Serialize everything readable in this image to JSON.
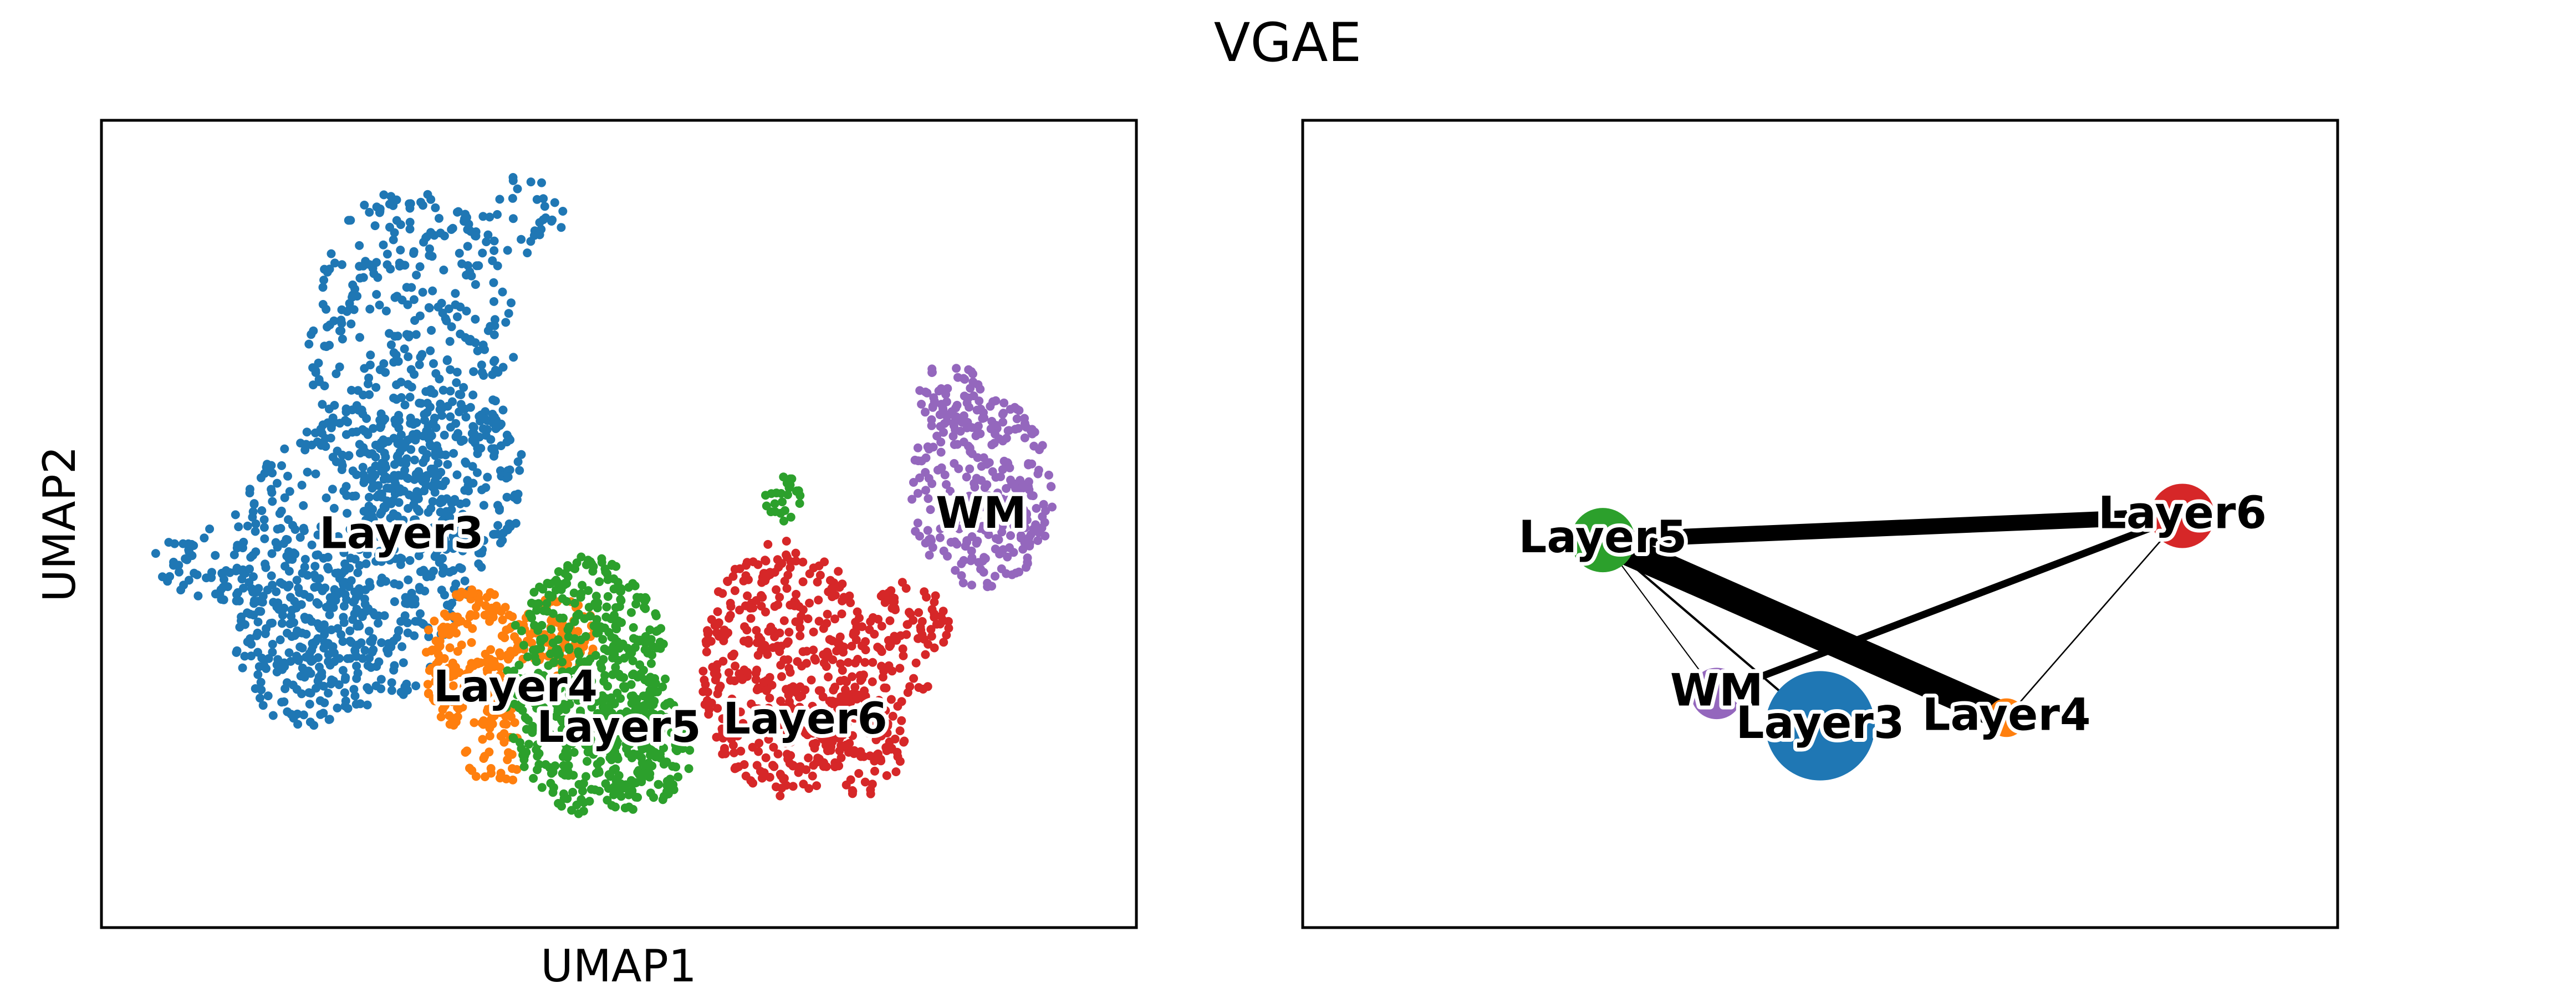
{
  "figure_title": "VGAE",
  "chart_data": [
    {
      "type": "scatter",
      "xlabel": "UMAP1",
      "ylabel": "UMAP2",
      "axes_ticks": "none",
      "grid": false,
      "categories": [
        "Layer3",
        "Layer4",
        "Layer5",
        "Layer6",
        "WM"
      ],
      "colors": {
        "Layer3": "#1f77b4",
        "Layer4": "#ff7f0e",
        "Layer5": "#2ca02c",
        "Layer6": "#d62728",
        "WM": "#9467bd"
      },
      "cluster_labels": [
        {
          "text": "Layer3",
          "x": 0.29,
          "y": 0.485
        },
        {
          "text": "Layer4",
          "x": 0.4,
          "y": 0.295
        },
        {
          "text": "Layer5",
          "x": 0.5,
          "y": 0.245
        },
        {
          "text": "Layer6",
          "x": 0.68,
          "y": 0.255
        },
        {
          "text": "WM",
          "x": 0.85,
          "y": 0.51
        }
      ]
    },
    {
      "type": "network",
      "nodes": [
        {
          "name": "Layer5",
          "x": 0.29,
          "y": 0.48,
          "size": 1.0,
          "color": "#2ca02c"
        },
        {
          "name": "Layer6",
          "x": 0.85,
          "y": 0.51,
          "size": 1.0,
          "color": "#d62728"
        },
        {
          "name": "WM",
          "x": 0.4,
          "y": 0.29,
          "size": 0.8,
          "color": "#9467bd"
        },
        {
          "name": "Layer3",
          "x": 0.5,
          "y": 0.25,
          "size": 1.7,
          "color": "#1f77b4"
        },
        {
          "name": "Layer4",
          "x": 0.68,
          "y": 0.26,
          "size": 0.6,
          "color": "#ff7f0e"
        }
      ],
      "edges": [
        {
          "source": "Layer5",
          "target": "Layer4",
          "weight": 1.0
        },
        {
          "source": "Layer5",
          "target": "Layer6",
          "weight": 0.55
        },
        {
          "source": "WM",
          "target": "Layer6",
          "weight": 0.25
        },
        {
          "source": "Layer5",
          "target": "Layer3",
          "weight": 0.08
        },
        {
          "source": "Layer6",
          "target": "Layer4",
          "weight": 0.05
        },
        {
          "source": "Layer5",
          "target": "WM",
          "weight": 0.04
        }
      ]
    }
  ]
}
